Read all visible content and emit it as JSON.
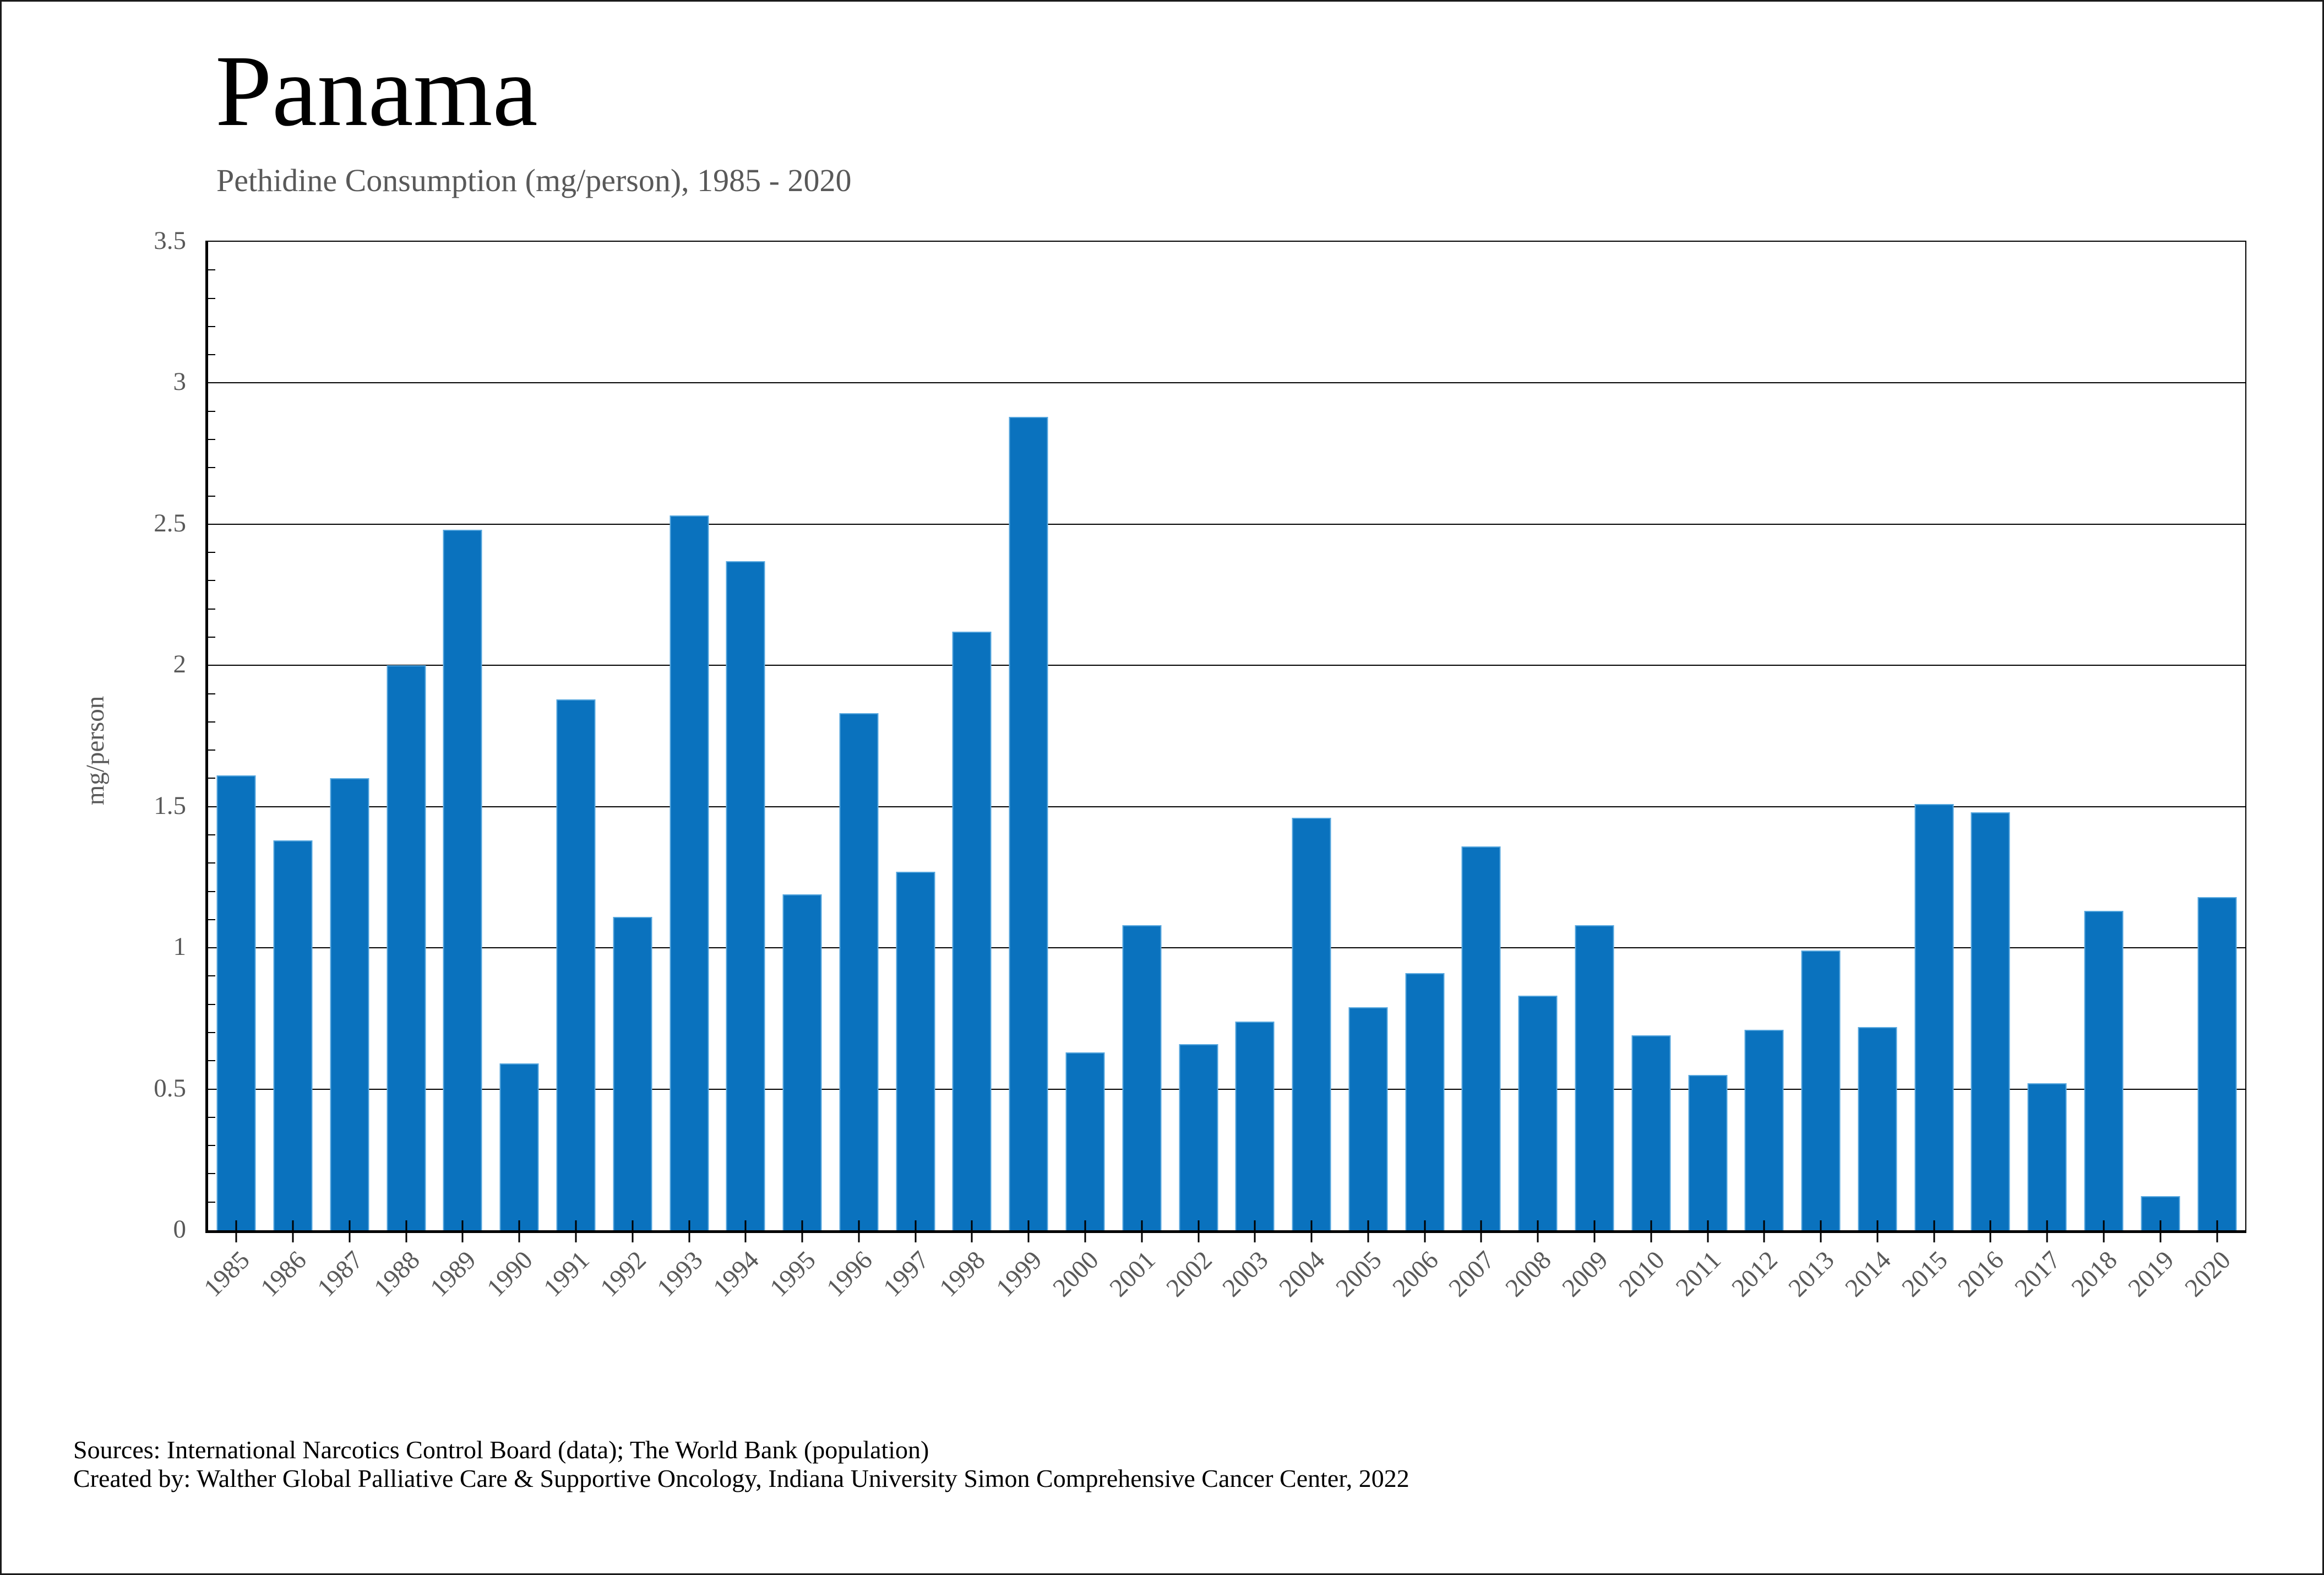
{
  "title": "Panama",
  "subtitle": "Pethidine Consumption (mg/person), 1985 - 2020",
  "y_axis": {
    "title": "mg/person",
    "tick_labels": [
      "3.5",
      "3",
      "2.5",
      "2",
      "1.5",
      "1",
      "0.5",
      "0"
    ],
    "minor_tick_step": 0.1
  },
  "footer": {
    "line1": "Sources: International Narcotics Control Board (data); The World Bank (population)",
    "line2": "Created by: Walther Global Palliative Care & Supportive Oncology, Indiana University Simon Comprehensive Cancer Center, 2022"
  },
  "colors": {
    "bar": "#0a72be",
    "bar_edge": "#57a7de",
    "axis_text": "#595959",
    "grid": "#000000",
    "title_text": "#000000"
  },
  "chart_data": {
    "type": "bar",
    "title": "Panama",
    "subtitle": "Pethidine Consumption (mg/person), 1985 - 2020",
    "xlabel": "",
    "ylabel": "mg/person",
    "ylim": [
      0,
      3.5
    ],
    "grid": true,
    "legend": false,
    "categories": [
      "1985",
      "1986",
      "1987",
      "1988",
      "1989",
      "1990",
      "1991",
      "1992",
      "1993",
      "1994",
      "1995",
      "1996",
      "1997",
      "1998",
      "1999",
      "2000",
      "2001",
      "2002",
      "2003",
      "2004",
      "2005",
      "2006",
      "2007",
      "2008",
      "2009",
      "2010",
      "2011",
      "2012",
      "2013",
      "2014",
      "2015",
      "2016",
      "2017",
      "2018",
      "2019",
      "2020"
    ],
    "values": [
      1.61,
      1.38,
      1.6,
      2.0,
      2.48,
      0.59,
      1.88,
      1.11,
      2.53,
      2.37,
      1.19,
      1.83,
      1.27,
      2.12,
      2.88,
      0.63,
      1.08,
      0.66,
      0.74,
      1.46,
      0.79,
      0.91,
      1.36,
      0.83,
      1.08,
      0.69,
      0.55,
      0.71,
      0.99,
      0.72,
      1.51,
      1.48,
      0.52,
      1.13,
      0.12,
      1.18
    ]
  }
}
